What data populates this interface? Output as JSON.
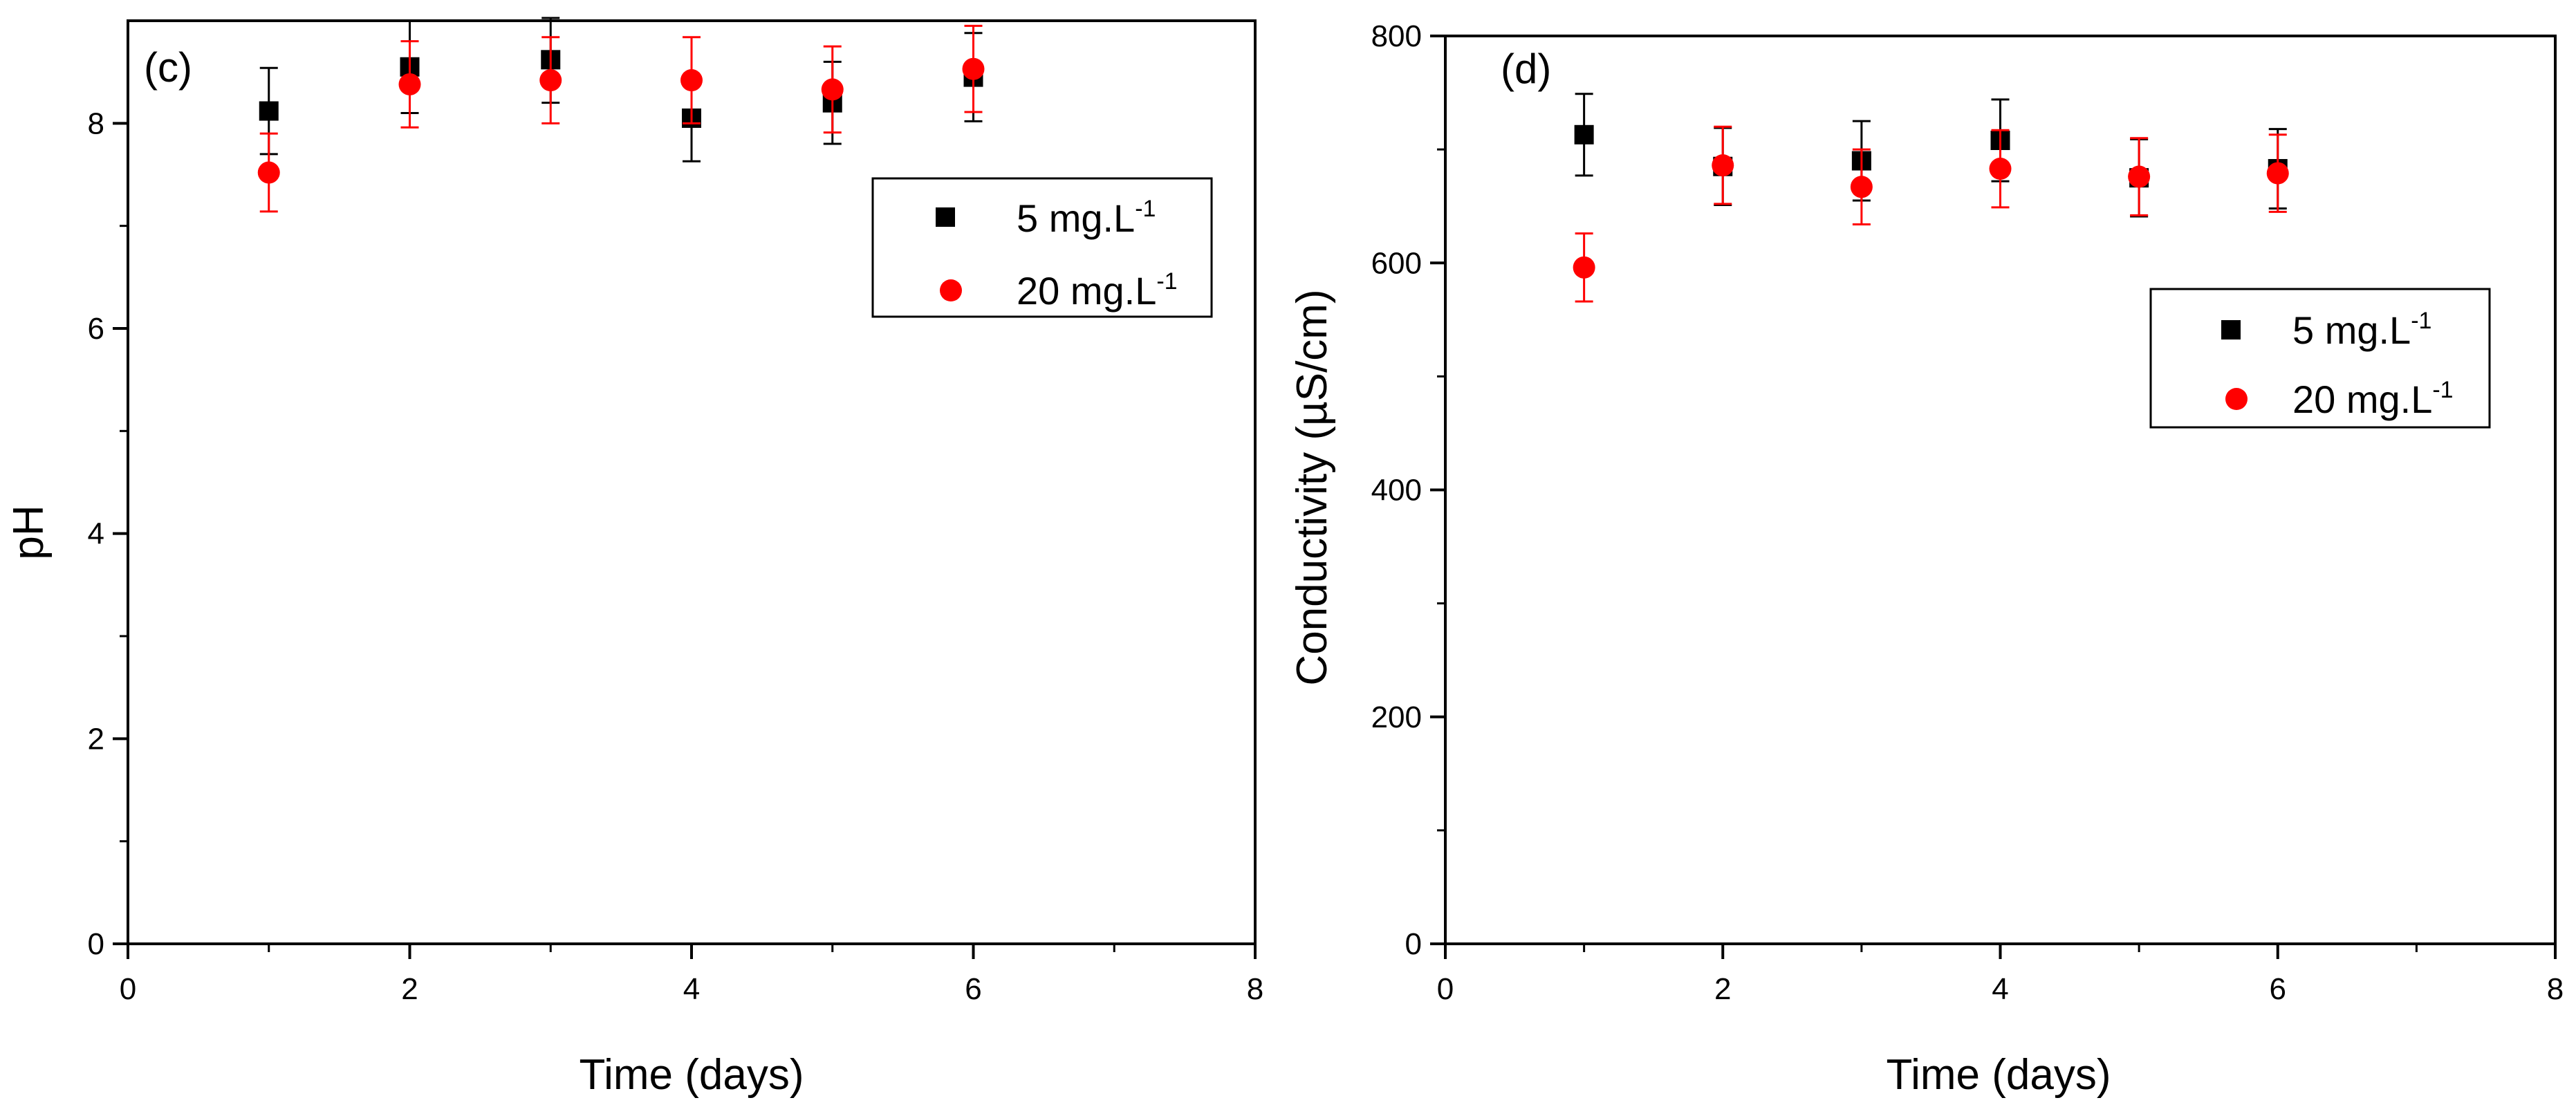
{
  "colors": {
    "series_5": "#000000",
    "series_20": "#ff0000",
    "axis": "#000000",
    "background": "#ffffff"
  },
  "chart_data": [
    {
      "type": "scatter",
      "panel_label": "(c)",
      "xlabel": "Time (days)",
      "ylabel": "pH",
      "xlim": [
        0,
        8
      ],
      "ylim": [
        0,
        9
      ],
      "xticks": [
        0,
        2,
        4,
        6,
        8
      ],
      "xtick_labels": [
        "0",
        "2",
        "4",
        "6",
        "8"
      ],
      "yticks": [
        0,
        2,
        4,
        6,
        8
      ],
      "ytick_labels": [
        "0",
        "2",
        "4",
        "6",
        "8"
      ],
      "grid": false,
      "legend_position": "upper-right",
      "series": [
        {
          "name": "5 mg.L",
          "name_sup": "-1",
          "marker": "square",
          "color": "#000000",
          "x": [
            1,
            2,
            3,
            4,
            5,
            6
          ],
          "y": [
            8.12,
            8.55,
            8.62,
            8.05,
            8.2,
            8.45
          ],
          "error": [
            0.42,
            0.45,
            0.42,
            0.42,
            0.4,
            0.43
          ]
        },
        {
          "name": "20 mg.L",
          "name_sup": "-1",
          "marker": "circle",
          "color": "#ff0000",
          "x": [
            1,
            2,
            3,
            4,
            5,
            6
          ],
          "y": [
            7.52,
            8.38,
            8.42,
            8.42,
            8.33,
            8.53
          ],
          "error": [
            0.38,
            0.42,
            0.42,
            0.42,
            0.42,
            0.42
          ]
        }
      ]
    },
    {
      "type": "scatter",
      "panel_label": "(d)",
      "xlabel": "Time (days)",
      "ylabel": "Conductivity (µS/cm)",
      "xlim": [
        0,
        8
      ],
      "ylim": [
        0,
        800
      ],
      "xticks": [
        0,
        2,
        4,
        6,
        8
      ],
      "xtick_labels": [
        "0",
        "2",
        "4",
        "6",
        "8"
      ],
      "yticks": [
        0,
        200,
        400,
        600,
        800
      ],
      "ytick_labels": [
        "0",
        "200",
        "400",
        "600",
        "800"
      ],
      "grid": false,
      "legend_position": "upper-right",
      "series": [
        {
          "name": "5 mg.L",
          "name_sup": "-1",
          "marker": "square",
          "color": "#000000",
          "x": [
            1,
            2,
            3,
            4,
            5,
            6
          ],
          "y": [
            713,
            685,
            690,
            708,
            675,
            683
          ],
          "error": [
            36,
            34,
            35,
            36,
            34,
            35
          ]
        },
        {
          "name": "20 mg.L",
          "name_sup": "-1",
          "marker": "circle",
          "color": "#ff0000",
          "x": [
            1,
            2,
            3,
            4,
            5,
            6
          ],
          "y": [
            596,
            686,
            667,
            683,
            676,
            679
          ],
          "error": [
            30,
            34,
            33,
            34,
            34,
            34
          ]
        }
      ]
    }
  ]
}
